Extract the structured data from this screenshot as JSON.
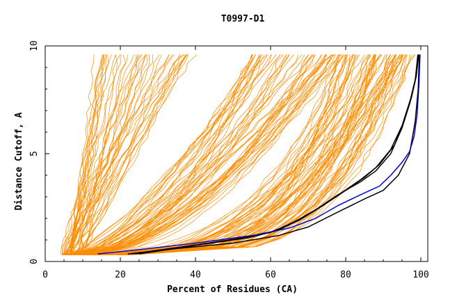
{
  "chart_data": {
    "type": "line",
    "title": "T0997-D1",
    "xlabel": "Percent of Residues (CA)",
    "ylabel": "Distance Cutoff, A",
    "xlim": [
      0,
      100
    ],
    "ylim": [
      0,
      10
    ],
    "xticks": [
      "0",
      "20",
      "40",
      "60",
      "80",
      "100"
    ],
    "yticks": [
      "0",
      "5",
      "10"
    ],
    "grid": false,
    "legend": "none",
    "colors": {
      "bulk": "#ff8c00",
      "highlight_black": "#000000",
      "highlight_blue": "#0000cc"
    },
    "series": [
      {
        "color": "#000000",
        "points": [
          [
            22,
            0.35
          ],
          [
            35,
            0.6
          ],
          [
            50,
            0.85
          ],
          [
            62,
            1.2
          ],
          [
            70,
            1.6
          ],
          [
            78,
            2.3
          ],
          [
            85,
            2.9
          ],
          [
            90,
            3.3
          ],
          [
            94,
            4.0
          ],
          [
            97,
            5.0
          ],
          [
            98.5,
            6.5
          ],
          [
            99.3,
            8.0
          ],
          [
            99.6,
            9.6
          ]
        ]
      },
      {
        "color": "#000000",
        "points": [
          [
            24,
            0.35
          ],
          [
            38,
            0.7
          ],
          [
            52,
            1.05
          ],
          [
            60,
            1.35
          ],
          [
            66,
            1.8
          ],
          [
            72,
            2.4
          ],
          [
            78,
            3.1
          ],
          [
            84,
            3.7
          ],
          [
            88,
            4.2
          ],
          [
            92,
            5.0
          ],
          [
            95,
            6.2
          ],
          [
            97,
            7.3
          ],
          [
            98.5,
            8.4
          ],
          [
            99.2,
            9.6
          ]
        ]
      },
      {
        "color": "#000000",
        "points": [
          [
            25,
            0.35
          ],
          [
            40,
            0.75
          ],
          [
            54,
            1.1
          ],
          [
            62,
            1.45
          ],
          [
            68,
            1.95
          ],
          [
            74,
            2.6
          ],
          [
            80,
            3.3
          ],
          [
            85,
            3.9
          ],
          [
            89,
            4.5
          ],
          [
            93,
            5.4
          ],
          [
            95.5,
            6.5
          ],
          [
            97.5,
            7.6
          ],
          [
            98.8,
            8.6
          ],
          [
            99.4,
            9.6
          ]
        ]
      },
      {
        "color": "#000000",
        "points": [
          [
            23,
            0.35
          ],
          [
            38,
            0.72
          ],
          [
            52,
            1.08
          ],
          [
            61,
            1.4
          ],
          [
            67,
            1.9
          ],
          [
            73,
            2.5
          ],
          [
            79,
            3.2
          ],
          [
            84,
            3.8
          ],
          [
            88,
            4.35
          ],
          [
            92,
            5.2
          ],
          [
            95,
            6.3
          ],
          [
            97.2,
            7.5
          ],
          [
            98.6,
            8.5
          ],
          [
            99.3,
            9.6
          ]
        ]
      },
      {
        "color": "#0000cc",
        "points": [
          [
            14,
            0.35
          ],
          [
            25,
            0.55
          ],
          [
            40,
            0.85
          ],
          [
            55,
            1.2
          ],
          [
            65,
            1.55
          ],
          [
            72,
            2.0
          ],
          [
            78,
            2.6
          ],
          [
            84,
            3.1
          ],
          [
            89,
            3.5
          ],
          [
            92,
            4.0
          ],
          [
            95,
            4.6
          ],
          [
            97,
            5.1
          ],
          [
            98.2,
            5.8
          ],
          [
            99,
            6.8
          ],
          [
            99.5,
            8.2
          ],
          [
            99.8,
            9.6
          ]
        ]
      }
    ]
  }
}
